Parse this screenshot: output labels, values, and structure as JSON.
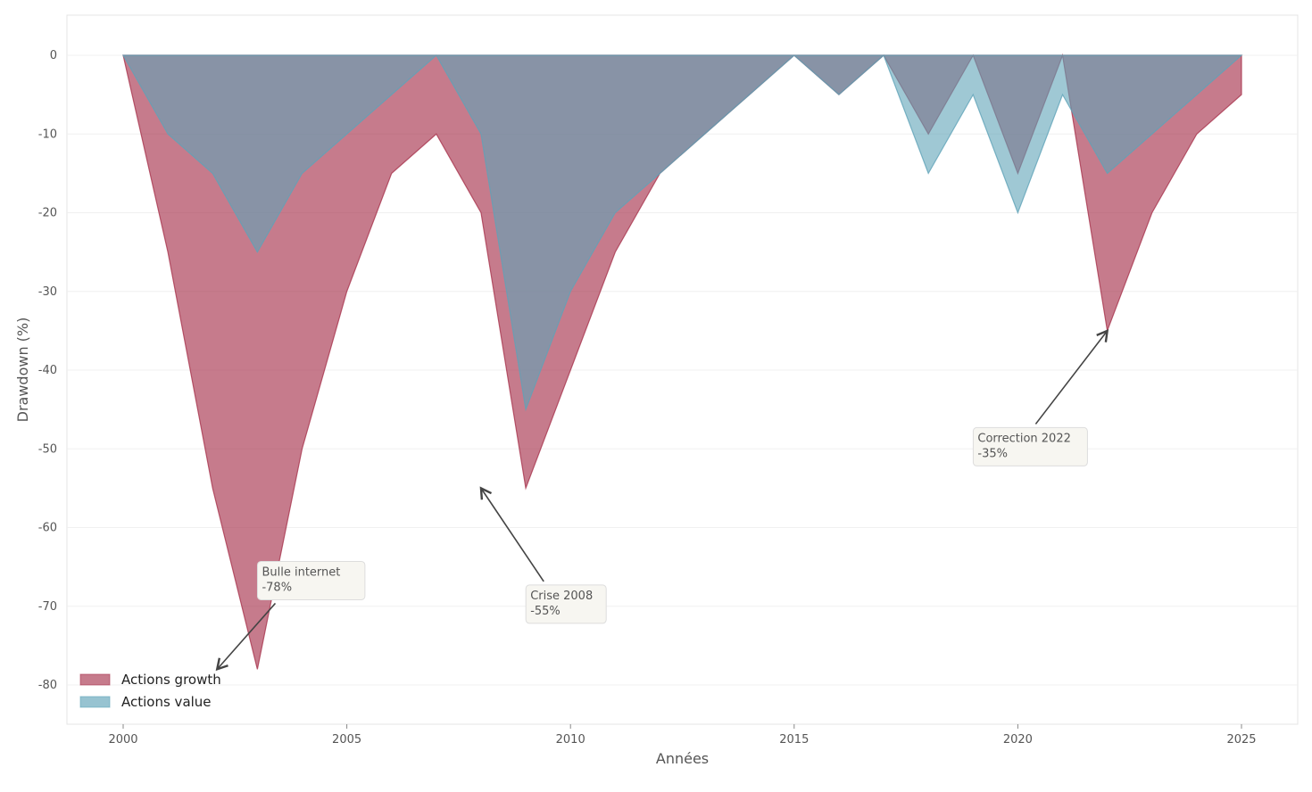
{
  "chart_data": {
    "type": "area",
    "title": "",
    "xlabel": "Années",
    "ylabel": "Drawdown (%)",
    "xlim": [
      1998.8,
      2026.3
    ],
    "ylim": [
      -85,
      5
    ],
    "xticks": [
      2000,
      2005,
      2010,
      2015,
      2020,
      2025
    ],
    "yticks": [
      0,
      -10,
      -20,
      -30,
      -40,
      -50,
      -60,
      -70,
      -80
    ],
    "grid": true,
    "legend_position": "bottom-left",
    "x": [
      2000,
      2001,
      2002,
      2003,
      2004,
      2005,
      2006,
      2007,
      2008,
      2009,
      2010,
      2011,
      2012,
      2013,
      2014,
      2015,
      2016,
      2017,
      2018,
      2019,
      2020,
      2021,
      2022,
      2023,
      2024,
      2025
    ],
    "series": [
      {
        "name": "Actions growth",
        "color": "#a8344e",
        "values": [
          0,
          -25,
          -55,
          -78,
          -50,
          -30,
          -15,
          -10,
          -20,
          -55,
          -40,
          -25,
          -15,
          -10,
          -5,
          0,
          -5,
          0,
          -10,
          0,
          -15,
          0,
          -35,
          -20,
          -10,
          -5
        ]
      },
      {
        "name": "Actions value",
        "color": "#5fa3b8",
        "values": [
          0,
          -10,
          -15,
          -25,
          -15,
          -10,
          -5,
          0,
          -10,
          -45,
          -30,
          -20,
          -15,
          -10,
          -5,
          0,
          -5,
          0,
          -15,
          -5,
          -20,
          -5,
          -15,
          -10,
          -5,
          0
        ]
      }
    ],
    "annotations": [
      {
        "text": [
          "Bulle internet",
          "-78%"
        ],
        "x": 2002.1,
        "y": -78,
        "text_x": 2004,
        "text_y": -66
      },
      {
        "text": [
          "Crise 2008",
          "-55%"
        ],
        "x": 2008,
        "y": -55,
        "text_x": 2010,
        "text_y": -69
      },
      {
        "text": [
          "Correction 2022",
          "-35%"
        ],
        "x": 2022,
        "y": -35,
        "text_x": 2020,
        "text_y": -49
      }
    ]
  }
}
